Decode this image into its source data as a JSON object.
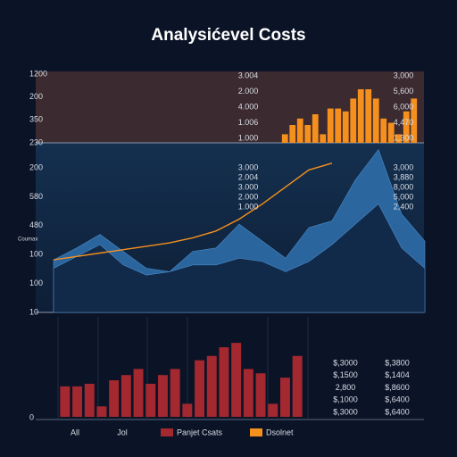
{
  "chart_data": [
    {
      "type": "bar",
      "title": "Analysićevel Costs",
      "values": [
        12,
        25,
        34,
        25,
        40,
        12,
        48,
        48,
        44,
        62,
        75,
        75,
        62,
        34,
        28,
        12,
        44,
        62
      ],
      "color": "#f5901e",
      "ylim": [
        0,
        100
      ],
      "y_labels": [
        "1200",
        "200",
        "350",
        "230"
      ],
      "mid_labels": [
        "3.004",
        "2.000",
        "4.000",
        "1.006",
        "1.000"
      ],
      "right_labels": [
        "3,000",
        "5,600",
        "6,000",
        "4,470",
        "1,300"
      ]
    },
    {
      "type": "area",
      "x": [
        0,
        1,
        2,
        3,
        4,
        5,
        6,
        7,
        8,
        9,
        10,
        11,
        12,
        13,
        14,
        15,
        16
      ],
      "xlim": [
        0,
        16
      ],
      "ylim": [
        0,
        100
      ],
      "side_label": "Coumax",
      "series": [
        {
          "color": "#2f6da8",
          "values": [
            31,
            38,
            46,
            36,
            26,
            24,
            36,
            38,
            52,
            42,
            32,
            50,
            54,
            78,
            96,
            58,
            42
          ]
        },
        {
          "color": "#0f2440",
          "values": [
            26,
            33,
            40,
            28,
            22,
            24,
            28,
            28,
            32,
            30,
            24,
            30,
            40,
            52,
            64,
            38,
            26
          ]
        },
        {
          "color": "#f5901e",
          "line": true,
          "values": [
            31,
            33,
            35,
            37,
            39,
            41,
            44,
            48,
            55,
            64,
            74,
            84,
            88,
            null,
            null,
            null,
            null
          ]
        }
      ],
      "y_labels": [
        "200",
        "580",
        "480",
        "100",
        "100",
        "10"
      ],
      "mid_labels": [
        "3.000",
        "2.004",
        "3.000",
        "2.000",
        "1.000"
      ],
      "right_labels": [
        "3,000",
        "3,880",
        "8,000",
        "5,000",
        "2,400"
      ]
    },
    {
      "type": "bar",
      "values": [
        35,
        35,
        38,
        12,
        42,
        48,
        55,
        38,
        48,
        55,
        15,
        65,
        70,
        80,
        85,
        55,
        50,
        15,
        45,
        70
      ],
      "color": "#a3282f",
      "ylim": [
        0,
        120
      ],
      "y_labels": [
        "0"
      ],
      "x_labels": [
        "All",
        "Jol"
      ],
      "mid_labels": [
        "$,3000",
        "$,1500",
        "2,800",
        "$,1000",
        "$,3000"
      ],
      "right_labels": [
        "$,3800",
        "$,1404",
        "$,8600",
        "$,6400",
        "$,6400"
      ],
      "legend": [
        {
          "name": "Panjet Csats",
          "color": "#a3282f"
        },
        {
          "name": "Dsolnet",
          "color": "#f5901e"
        }
      ]
    }
  ]
}
